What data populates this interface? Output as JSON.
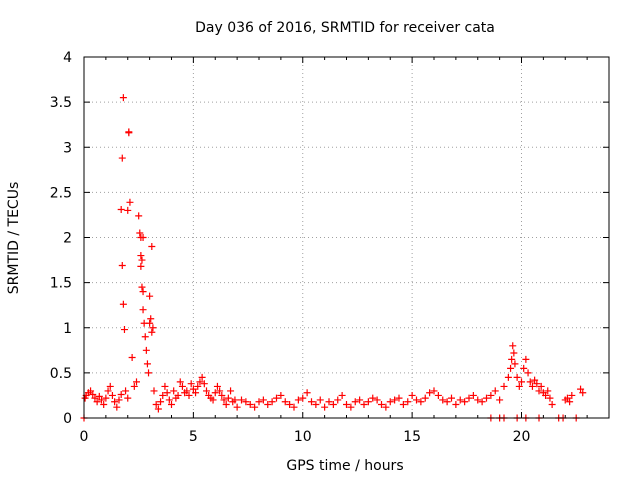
{
  "chart_data": {
    "type": "scatter",
    "title": "Day 036 of 2016, SRMTID for receiver cata",
    "xlabel": "GPS time / hours",
    "ylabel": "SRMTID / TECUs",
    "xlim": [
      0,
      24
    ],
    "ylim": [
      0,
      4
    ],
    "x_ticks": [
      0,
      5,
      10,
      15,
      20
    ],
    "y_ticks": [
      0,
      0.5,
      1,
      1.5,
      2,
      2.5,
      3,
      3.5,
      4
    ],
    "x_tick_labels": [
      "0",
      "5",
      "10",
      "15",
      "20"
    ],
    "y_tick_labels": [
      "0",
      "0.5",
      "1",
      "1.5",
      "2",
      "2.5",
      "3",
      "3.5",
      "4"
    ],
    "grid": true,
    "marker": "+",
    "color": "#ff0000",
    "series": [
      {
        "name": "SRMTID",
        "x": [
          0.05,
          0.1,
          0.2,
          0.3,
          0.4,
          0.5,
          0.6,
          0.7,
          0.8,
          0.9,
          1.0,
          1.1,
          1.2,
          1.3,
          1.4,
          1.5,
          1.6,
          1.7,
          1.75,
          1.8,
          1.85,
          1.9,
          2.0,
          2.05,
          2.1,
          2.2,
          2.3,
          2.4,
          2.5,
          2.55,
          2.6,
          2.65,
          2.7,
          2.75,
          2.8,
          2.85,
          2.9,
          2.95,
          3.0,
          3.05,
          3.1,
          3.2,
          3.3,
          3.4,
          3.5,
          3.6,
          3.7,
          3.8,
          3.9,
          4.0,
          4.1,
          4.2,
          4.3,
          4.4,
          4.5,
          4.6,
          4.7,
          4.8,
          4.9,
          5.0,
          5.1,
          5.2,
          5.3,
          5.4,
          5.5,
          5.6,
          5.7,
          5.8,
          5.9,
          6.0,
          6.1,
          6.2,
          6.3,
          6.4,
          6.5,
          6.6,
          6.7,
          6.8,
          6.9,
          7.0,
          7.2,
          7.4,
          7.6,
          7.8,
          8.0,
          8.2,
          8.4,
          8.6,
          8.8,
          9.0,
          9.2,
          9.4,
          9.6,
          9.8,
          10.0,
          10.2,
          10.4,
          10.6,
          10.8,
          11.0,
          11.2,
          11.4,
          11.6,
          11.8,
          12.0,
          12.2,
          12.4,
          12.6,
          12.8,
          13.0,
          13.2,
          13.4,
          13.6,
          13.8,
          14.0,
          14.2,
          14.4,
          14.6,
          14.8,
          15.0,
          15.2,
          15.4,
          15.6,
          15.8,
          16.0,
          16.2,
          16.4,
          16.6,
          16.8,
          17.0,
          17.2,
          17.4,
          17.6,
          17.8,
          18.0,
          18.2,
          18.4,
          18.6,
          18.8,
          19.0,
          19.2,
          19.4,
          19.5,
          19.55,
          19.6,
          19.65,
          19.7,
          19.8,
          19.9,
          20.0,
          20.1,
          20.2,
          20.3,
          20.4,
          20.5,
          20.6,
          20.7,
          20.8,
          20.9,
          21.0,
          21.1,
          21.2,
          21.3,
          21.4,
          22.0,
          22.1,
          22.2,
          22.3,
          22.7,
          22.8,
          0.0,
          18.6,
          19.0,
          19.2,
          19.8,
          20.2,
          20.8,
          21.7,
          21.9,
          22.5,
          1.8,
          2.0,
          2.6,
          2.7,
          3.1,
          1.7,
          1.75,
          2.05,
          2.6,
          2.65,
          2.7,
          3.0,
          3.15
        ],
        "y": [
          0.22,
          0.25,
          0.28,
          0.3,
          0.26,
          0.22,
          0.18,
          0.24,
          0.2,
          0.15,
          0.22,
          0.3,
          0.35,
          0.25,
          0.18,
          0.12,
          0.2,
          0.26,
          2.88,
          1.26,
          0.98,
          0.3,
          0.22,
          3.16,
          2.39,
          0.67,
          0.35,
          0.4,
          2.24,
          2.05,
          1.8,
          1.45,
          1.2,
          1.05,
          0.9,
          0.75,
          0.6,
          0.5,
          1.35,
          1.1,
          0.95,
          0.3,
          0.15,
          0.1,
          0.18,
          0.25,
          0.35,
          0.28,
          0.2,
          0.15,
          0.3,
          0.22,
          0.25,
          0.4,
          0.35,
          0.28,
          0.3,
          0.25,
          0.38,
          0.32,
          0.28,
          0.35,
          0.4,
          0.45,
          0.38,
          0.3,
          0.25,
          0.22,
          0.2,
          0.28,
          0.35,
          0.3,
          0.25,
          0.2,
          0.15,
          0.22,
          0.3,
          0.18,
          0.2,
          0.12,
          0.2,
          0.18,
          0.15,
          0.12,
          0.18,
          0.2,
          0.15,
          0.18,
          0.22,
          0.25,
          0.18,
          0.15,
          0.12,
          0.2,
          0.22,
          0.28,
          0.18,
          0.15,
          0.2,
          0.12,
          0.18,
          0.15,
          0.2,
          0.25,
          0.15,
          0.12,
          0.18,
          0.2,
          0.15,
          0.18,
          0.22,
          0.2,
          0.15,
          0.12,
          0.18,
          0.2,
          0.22,
          0.15,
          0.18,
          0.25,
          0.2,
          0.18,
          0.22,
          0.28,
          0.3,
          0.25,
          0.2,
          0.18,
          0.22,
          0.15,
          0.2,
          0.18,
          0.22,
          0.25,
          0.2,
          0.18,
          0.22,
          0.25,
          0.3,
          0.2,
          0.35,
          0.45,
          0.55,
          0.65,
          0.8,
          0.72,
          0.6,
          0.45,
          0.35,
          0.4,
          0.55,
          0.65,
          0.5,
          0.4,
          0.35,
          0.42,
          0.38,
          0.3,
          0.35,
          0.28,
          0.25,
          0.3,
          0.22,
          0.15,
          0.2,
          0.22,
          0.18,
          0.25,
          0.32,
          0.28,
          0.0,
          0.0,
          0.0,
          0.0,
          0.0,
          0.0,
          0.0,
          0.0,
          0.0,
          0.0,
          3.55,
          2.3,
          1.68,
          2.0,
          1.9,
          2.31,
          1.69,
          3.17,
          2.0,
          1.75,
          1.4,
          1.05,
          1.0
        ]
      }
    ]
  }
}
